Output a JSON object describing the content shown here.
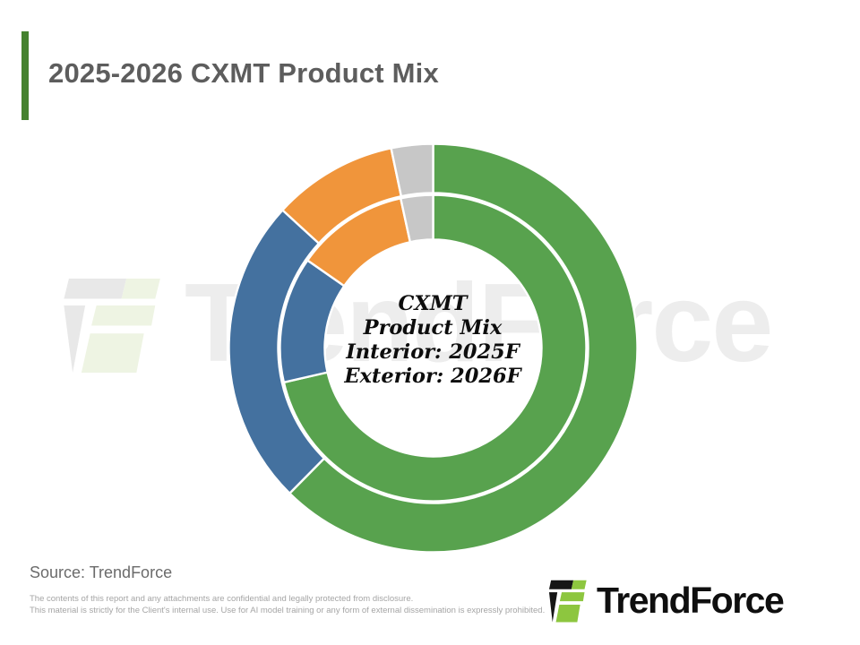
{
  "header": {
    "title": "2025-2026 CXMT Product Mix"
  },
  "accent_color": "#45822F",
  "watermark": {
    "text": "TrendForce"
  },
  "chart_data": {
    "type": "pie",
    "variant": "double-ring-donut",
    "title": "2025-2026 CXMT Product Mix",
    "center_lines": [
      "CXMT",
      "Product Mix",
      "Interior: 2025F",
      "Exterior: 2026F"
    ],
    "start_angle_deg": 0,
    "direction": "clockwise",
    "legend": "none",
    "data_labels": "none",
    "values_are_estimated_percent": true,
    "colors": {
      "green": "#58A24E",
      "blue": "#44719F",
      "orange": "#F0953B",
      "gray": "#C7C7C7"
    },
    "rings": [
      {
        "name": "interior",
        "year_label": "2025F",
        "segments": [
          {
            "name": "green",
            "color": "#58A24E",
            "value": 71.4
          },
          {
            "name": "blue",
            "color": "#44719F",
            "value": 13.3
          },
          {
            "name": "orange",
            "color": "#F0953B",
            "value": 11.9
          },
          {
            "name": "gray",
            "color": "#C7C7C7",
            "value": 3.4
          }
        ]
      },
      {
        "name": "exterior",
        "year_label": "2026F",
        "segments": [
          {
            "name": "green",
            "color": "#58A24E",
            "value": 62.4
          },
          {
            "name": "blue",
            "color": "#44719F",
            "value": 24.4
          },
          {
            "name": "orange",
            "color": "#F0953B",
            "value": 9.9
          },
          {
            "name": "gray",
            "color": "#C7C7C7",
            "value": 3.3
          }
        ]
      }
    ]
  },
  "footer": {
    "source": "Source: TrendForce",
    "disclaimer_lines": [
      "The contents of this report and any attachments are confidential and legally protected from disclosure.",
      "This material is strictly for the Client's internal use. Use for AI model training or any form of external dissemination is expressly prohibited."
    ],
    "logo_text": "TrendForce"
  }
}
